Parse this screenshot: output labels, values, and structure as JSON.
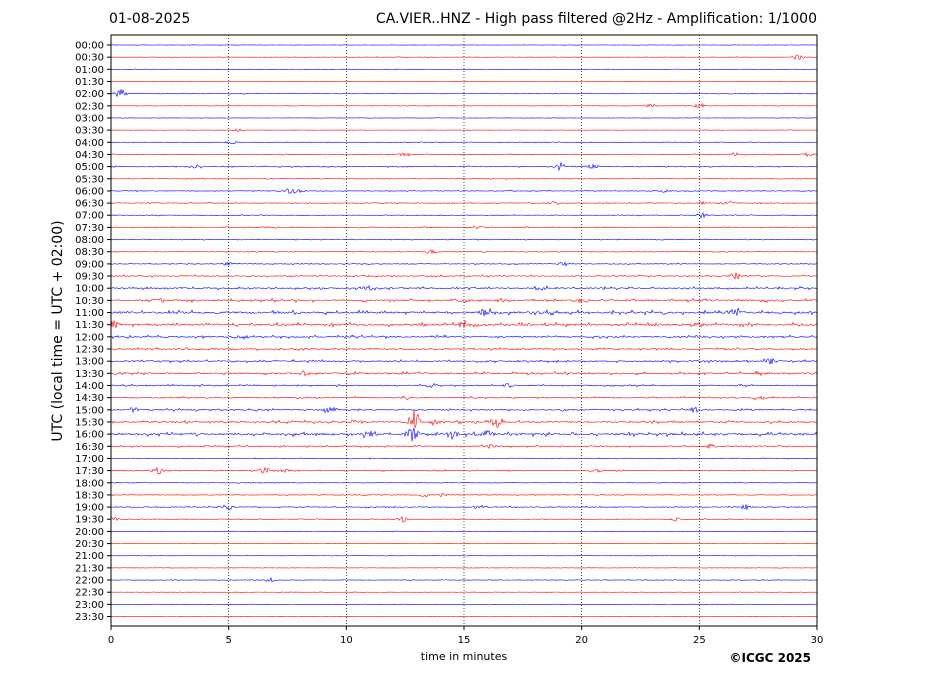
{
  "header": {
    "date": "01-08-2025",
    "title": "CA.VIER..HNZ - High pass filtered @2Hz - Amplification: 1/1000"
  },
  "footer": {
    "copyright": "©ICGC 2025"
  },
  "chart_data": {
    "type": "line",
    "title": "CA.VIER..HNZ - High pass filtered @2Hz - Amplification: 1/1000",
    "xlabel": "time in minutes",
    "ylabel": "UTC (local time = UTC + 02:00)",
    "xlim": [
      0,
      30
    ],
    "xticks": [
      0,
      5,
      10,
      15,
      20,
      25,
      30
    ],
    "grid": "vertical dotted at 5, 10, 15, 20, 25",
    "colors": {
      "even_rows": "#0000ff",
      "odd_rows": "#ff0000",
      "frame": "#000000"
    },
    "rows": [
      {
        "label": "00:00",
        "activity": 0.2,
        "events": []
      },
      {
        "label": "00:30",
        "activity": 0.2,
        "events": [
          [
            29.2,
            3
          ]
        ]
      },
      {
        "label": "01:00",
        "activity": 0.2,
        "events": []
      },
      {
        "label": "01:30",
        "activity": 0.2,
        "events": []
      },
      {
        "label": "02:00",
        "activity": 0.3,
        "events": [
          [
            0.4,
            5
          ]
        ]
      },
      {
        "label": "02:30",
        "activity": 0.2,
        "events": [
          [
            22.9,
            3
          ],
          [
            25.0,
            3
          ]
        ]
      },
      {
        "label": "03:00",
        "activity": 0.2,
        "events": []
      },
      {
        "label": "03:30",
        "activity": 0.2,
        "events": [
          [
            5.4,
            2
          ]
        ]
      },
      {
        "label": "04:00",
        "activity": 0.3,
        "events": [
          [
            5.1,
            2
          ]
        ]
      },
      {
        "label": "04:30",
        "activity": 0.4,
        "events": [
          [
            12.5,
            3
          ],
          [
            26.5,
            2
          ],
          [
            29.6,
            2
          ]
        ]
      },
      {
        "label": "05:00",
        "activity": 0.5,
        "events": [
          [
            3.6,
            2
          ],
          [
            19.1,
            4
          ],
          [
            20.5,
            3
          ]
        ]
      },
      {
        "label": "05:30",
        "activity": 0.3,
        "events": []
      },
      {
        "label": "06:00",
        "activity": 0.4,
        "events": [
          [
            7.6,
            3
          ],
          [
            8.0,
            3
          ],
          [
            23.5,
            2
          ]
        ]
      },
      {
        "label": "06:30",
        "activity": 0.4,
        "events": [
          [
            18.8,
            2
          ],
          [
            25.2,
            2
          ],
          [
            26.2,
            3
          ]
        ]
      },
      {
        "label": "07:00",
        "activity": 0.4,
        "events": [
          [
            25.1,
            3
          ]
        ]
      },
      {
        "label": "07:30",
        "activity": 0.4,
        "events": [
          [
            15.6,
            3
          ],
          [
            6.8,
            1.5
          ]
        ]
      },
      {
        "label": "08:00",
        "activity": 0.4,
        "events": []
      },
      {
        "label": "08:30",
        "activity": 0.4,
        "events": [
          [
            13.6,
            3
          ]
        ]
      },
      {
        "label": "09:00",
        "activity": 0.5,
        "events": [
          [
            5.0,
            2
          ],
          [
            19.2,
            2
          ]
        ]
      },
      {
        "label": "09:30",
        "activity": 0.7,
        "events": [
          [
            26.5,
            3
          ]
        ]
      },
      {
        "label": "10:00",
        "activity": 0.9,
        "events": [
          [
            18.3,
            2
          ],
          [
            11.0,
            2
          ]
        ]
      },
      {
        "label": "10:30",
        "activity": 1.1,
        "events": [
          [
            2.1,
            2
          ],
          [
            15.0,
            2
          ],
          [
            20.0,
            2
          ]
        ]
      },
      {
        "label": "11:00",
        "activity": 1.4,
        "events": [
          [
            15.9,
            4
          ],
          [
            26.5,
            4
          ]
        ]
      },
      {
        "label": "11:30",
        "activity": 1.3,
        "events": [
          [
            0.1,
            4
          ],
          [
            15.0,
            4
          ],
          [
            25.0,
            2
          ]
        ]
      },
      {
        "label": "12:00",
        "activity": 1.0,
        "events": [
          [
            5.6,
            2
          ]
        ]
      },
      {
        "label": "12:30",
        "activity": 0.8,
        "events": []
      },
      {
        "label": "13:00",
        "activity": 0.9,
        "events": [
          [
            28.0,
            3
          ]
        ]
      },
      {
        "label": "13:30",
        "activity": 1.0,
        "events": [
          [
            8.3,
            2
          ],
          [
            27.6,
            2
          ]
        ]
      },
      {
        "label": "14:00",
        "activity": 0.7,
        "events": [
          [
            13.6,
            2
          ],
          [
            16.9,
            2
          ]
        ]
      },
      {
        "label": "14:30",
        "activity": 0.7,
        "events": [
          [
            12.5,
            2
          ],
          [
            27.5,
            2
          ]
        ]
      },
      {
        "label": "15:00",
        "activity": 0.8,
        "events": [
          [
            1.0,
            2
          ],
          [
            9.3,
            4
          ],
          [
            24.8,
            3
          ]
        ]
      },
      {
        "label": "15:30",
        "activity": 1.0,
        "events": [
          [
            12.9,
            14
          ],
          [
            16.4,
            4
          ],
          [
            10.5,
            2
          ],
          [
            13.8,
            3
          ]
        ]
      },
      {
        "label": "16:00",
        "activity": 1.3,
        "events": [
          [
            11.0,
            5
          ],
          [
            12.8,
            8
          ],
          [
            14.5,
            5
          ],
          [
            16.0,
            4
          ]
        ]
      },
      {
        "label": "16:30",
        "activity": 0.7,
        "events": [
          [
            25.5,
            2
          ],
          [
            16.2,
            2
          ]
        ]
      },
      {
        "label": "17:00",
        "activity": 0.4,
        "events": []
      },
      {
        "label": "17:30",
        "activity": 0.5,
        "events": [
          [
            2.0,
            4
          ],
          [
            6.5,
            3
          ],
          [
            7.4,
            2
          ],
          [
            20.6,
            2
          ]
        ]
      },
      {
        "label": "18:00",
        "activity": 0.3,
        "events": []
      },
      {
        "label": "18:30",
        "activity": 0.4,
        "events": [
          [
            13.3,
            2
          ],
          [
            14.1,
            2
          ]
        ]
      },
      {
        "label": "19:00",
        "activity": 0.5,
        "events": [
          [
            5.0,
            3
          ],
          [
            15.7,
            3
          ],
          [
            27.0,
            3
          ]
        ]
      },
      {
        "label": "19:30",
        "activity": 0.4,
        "events": [
          [
            0.1,
            2
          ],
          [
            12.4,
            3
          ],
          [
            24.0,
            2
          ]
        ]
      },
      {
        "label": "20:00",
        "activity": 0.2,
        "events": []
      },
      {
        "label": "20:30",
        "activity": 0.2,
        "events": []
      },
      {
        "label": "21:00",
        "activity": 0.2,
        "events": []
      },
      {
        "label": "21:30",
        "activity": 0.2,
        "events": []
      },
      {
        "label": "22:00",
        "activity": 0.3,
        "events": [
          [
            6.8,
            3
          ]
        ]
      },
      {
        "label": "22:30",
        "activity": 0.2,
        "events": []
      },
      {
        "label": "23:00",
        "activity": 0.2,
        "events": []
      },
      {
        "label": "23:30",
        "activity": 0.2,
        "events": []
      }
    ]
  }
}
